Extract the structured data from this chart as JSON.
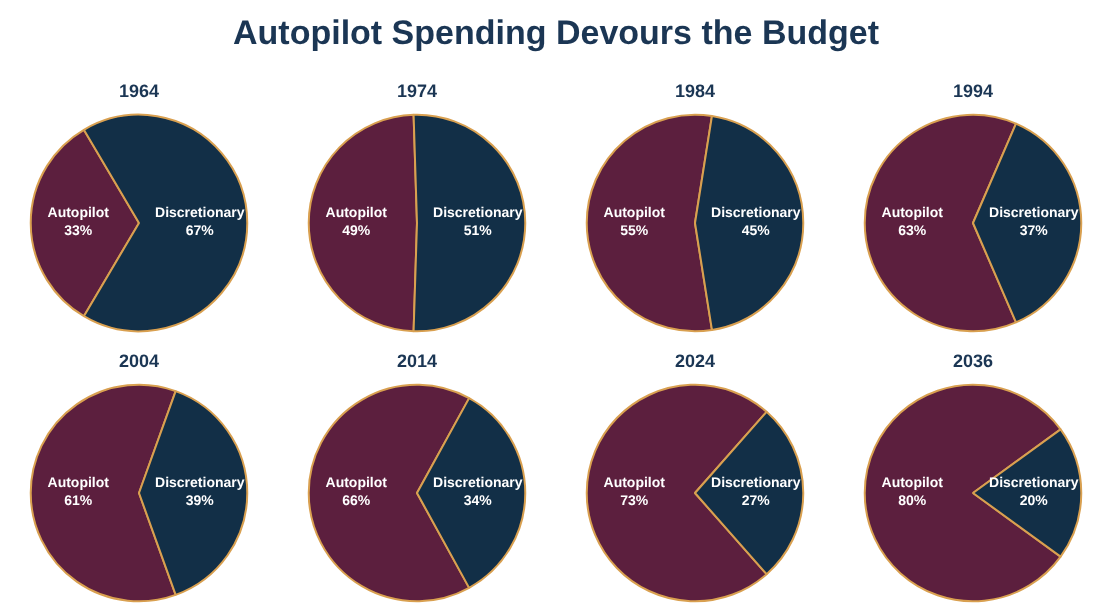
{
  "chart_data": [
    {
      "type": "other",
      "title": "Autopilot Spending Devours the Budget"
    },
    {
      "type": "pie",
      "title": "1964",
      "categories": [
        "Autopilot",
        "Discretionary"
      ],
      "values": [
        33,
        67
      ],
      "value_labels": [
        "33%",
        "67%"
      ],
      "colors": [
        "#5c1f3e",
        "#122f47"
      ]
    },
    {
      "type": "pie",
      "title": "1974",
      "categories": [
        "Autopilot",
        "Discretionary"
      ],
      "values": [
        49,
        51
      ],
      "value_labels": [
        "49%",
        "51%"
      ],
      "colors": [
        "#5c1f3e",
        "#122f47"
      ]
    },
    {
      "type": "pie",
      "title": "1984",
      "categories": [
        "Autopilot",
        "Discretionary"
      ],
      "values": [
        55,
        45
      ],
      "value_labels": [
        "55%",
        "45%"
      ],
      "colors": [
        "#5c1f3e",
        "#122f47"
      ]
    },
    {
      "type": "pie",
      "title": "1994",
      "categories": [
        "Autopilot",
        "Discretionary"
      ],
      "values": [
        63,
        37
      ],
      "value_labels": [
        "63%",
        "37%"
      ],
      "colors": [
        "#5c1f3e",
        "#122f47"
      ]
    },
    {
      "type": "pie",
      "title": "2004",
      "categories": [
        "Autopilot",
        "Discretionary"
      ],
      "values": [
        61,
        39
      ],
      "value_labels": [
        "61%",
        "39%"
      ],
      "colors": [
        "#5c1f3e",
        "#122f47"
      ]
    },
    {
      "type": "pie",
      "title": "2014",
      "categories": [
        "Autopilot",
        "Discretionary"
      ],
      "values": [
        66,
        34
      ],
      "value_labels": [
        "66%",
        "34%"
      ],
      "colors": [
        "#5c1f3e",
        "#122f47"
      ]
    },
    {
      "type": "pie",
      "title": "2024",
      "categories": [
        "Autopilot",
        "Discretionary"
      ],
      "values": [
        73,
        27
      ],
      "value_labels": [
        "73%",
        "27%"
      ],
      "colors": [
        "#5c1f3e",
        "#122f47"
      ]
    },
    {
      "type": "pie",
      "title": "2036",
      "categories": [
        "Autopilot",
        "Discretionary"
      ],
      "values": [
        80,
        20
      ],
      "value_labels": [
        "80%",
        "20%"
      ],
      "colors": [
        "#5c1f3e",
        "#122f47"
      ]
    }
  ]
}
